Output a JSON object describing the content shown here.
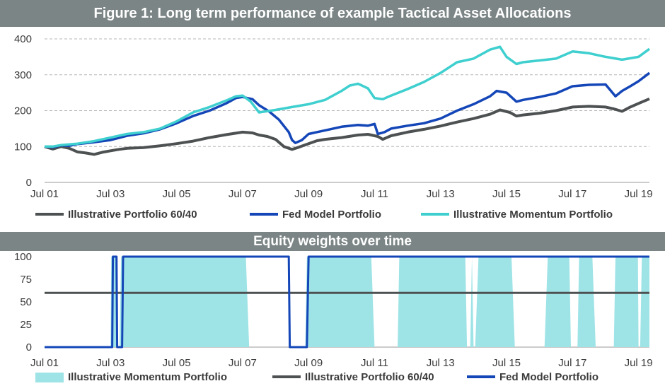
{
  "colors": {
    "banner": "#7c8586",
    "p6040": "#4d5152",
    "fed": "#1446b8",
    "momentum": "#3fcfcf",
    "momentum_fill": "#9ee3e6",
    "grid": "#b5b5b5",
    "text": "#3b3b3b"
  },
  "chart_data": [
    {
      "type": "line",
      "title": "Figure 1: Long term performance of example Tactical Asset Allocations",
      "x_tick_labels": [
        "Jul 01",
        "Jul 03",
        "Jul 05",
        "Jul 07",
        "Jul 09",
        "Jul 11",
        "Jul 13",
        "Jul 15",
        "Jul 17",
        "Jul 19"
      ],
      "x_ticks_year": [
        2001.5,
        2003.5,
        2005.5,
        2007.5,
        2009.5,
        2011.5,
        2013.5,
        2015.5,
        2017.5,
        2019.5
      ],
      "xlim": [
        2001.5,
        2019.83
      ],
      "ylim": [
        0,
        400
      ],
      "y_ticks": [
        0,
        100,
        200,
        300,
        400
      ],
      "grid": "horizontal dashed",
      "legend_position": "bottom",
      "series": [
        {
          "name": "Illustrative Portfolio 60/40",
          "color_key": "p6040",
          "x": [
            2001.5,
            2001.75,
            2002.0,
            2002.25,
            2002.5,
            2002.75,
            2003.0,
            2003.25,
            2003.5,
            2003.75,
            2004.0,
            2004.5,
            2005.0,
            2005.5,
            2006.0,
            2006.5,
            2007.0,
            2007.5,
            2007.8,
            2008.0,
            2008.25,
            2008.5,
            2008.75,
            2009.0,
            2009.2,
            2009.5,
            2009.75,
            2010.0,
            2010.5,
            2011.0,
            2011.3,
            2011.6,
            2011.75,
            2012.0,
            2012.5,
            2013.0,
            2013.5,
            2014.0,
            2014.5,
            2015.0,
            2015.3,
            2015.6,
            2015.8,
            2016.0,
            2016.5,
            2017.0,
            2017.5,
            2018.0,
            2018.5,
            2018.75,
            2019.0,
            2019.25,
            2019.5,
            2019.83
          ],
          "values": [
            100,
            93,
            100,
            95,
            85,
            82,
            78,
            84,
            88,
            92,
            95,
            97,
            102,
            108,
            115,
            125,
            133,
            140,
            138,
            132,
            128,
            120,
            100,
            92,
            98,
            108,
            116,
            120,
            125,
            132,
            134,
            128,
            120,
            130,
            140,
            148,
            157,
            168,
            178,
            190,
            202,
            195,
            185,
            188,
            193,
            200,
            210,
            212,
            210,
            205,
            198,
            210,
            220,
            233
          ]
        },
        {
          "name": "Fed Model Portfolio",
          "color_key": "fed",
          "x": [
            2001.5,
            2001.75,
            2002.0,
            2002.25,
            2002.5,
            2003.0,
            2003.5,
            2004.0,
            2004.5,
            2005.0,
            2005.5,
            2006.0,
            2006.5,
            2007.0,
            2007.3,
            2007.5,
            2007.8,
            2008.0,
            2008.3,
            2008.6,
            2008.9,
            2009.0,
            2009.1,
            2009.3,
            2009.5,
            2009.75,
            2010.0,
            2010.5,
            2011.0,
            2011.3,
            2011.5,
            2011.6,
            2011.8,
            2012.0,
            2012.5,
            2013.0,
            2013.5,
            2014.0,
            2014.5,
            2015.0,
            2015.2,
            2015.5,
            2015.8,
            2016.0,
            2016.5,
            2017.0,
            2017.5,
            2018.0,
            2018.5,
            2018.8,
            2019.0,
            2019.25,
            2019.5,
            2019.83
          ],
          "values": [
            100,
            98,
            103,
            102,
            107,
            112,
            118,
            130,
            137,
            148,
            165,
            185,
            200,
            220,
            235,
            238,
            232,
            215,
            198,
            175,
            140,
            118,
            110,
            118,
            135,
            140,
            145,
            155,
            160,
            158,
            163,
            135,
            140,
            150,
            158,
            165,
            178,
            200,
            218,
            240,
            255,
            250,
            225,
            230,
            238,
            248,
            268,
            272,
            273,
            240,
            255,
            268,
            282,
            305
          ]
        },
        {
          "name": "Illustrative Momentum Portfolio",
          "color_key": "momentum",
          "x": [
            2001.5,
            2001.75,
            2002.0,
            2002.5,
            2003.0,
            2003.5,
            2004.0,
            2004.5,
            2005.0,
            2005.5,
            2006.0,
            2006.5,
            2007.0,
            2007.3,
            2007.5,
            2007.75,
            2008.0,
            2008.5,
            2009.0,
            2009.5,
            2010.0,
            2010.5,
            2010.75,
            2011.0,
            2011.3,
            2011.5,
            2011.75,
            2012.0,
            2012.5,
            2013.0,
            2013.5,
            2014.0,
            2014.5,
            2015.0,
            2015.3,
            2015.5,
            2015.8,
            2016.0,
            2016.5,
            2017.0,
            2017.5,
            2018.0,
            2018.5,
            2019.0,
            2019.5,
            2019.83
          ],
          "values": [
            100,
            100,
            104,
            108,
            115,
            125,
            135,
            140,
            150,
            170,
            195,
            210,
            228,
            240,
            242,
            225,
            195,
            202,
            210,
            218,
            230,
            255,
            270,
            275,
            262,
            235,
            232,
            242,
            260,
            280,
            305,
            335,
            345,
            370,
            378,
            350,
            330,
            335,
            340,
            345,
            365,
            360,
            350,
            342,
            350,
            372
          ]
        }
      ]
    },
    {
      "type": "area",
      "title": "Equity weights over time",
      "x_tick_labels": [
        "Jul 01",
        "Jul 03",
        "Jul 05",
        "Jul 07",
        "Jul 09",
        "Jul 11",
        "Jul 13",
        "Jul 15",
        "Jul 17",
        "Jul 19"
      ],
      "x_ticks_year": [
        2001.5,
        2003.5,
        2005.5,
        2007.5,
        2009.5,
        2011.5,
        2013.5,
        2015.5,
        2017.5,
        2019.5
      ],
      "xlim": [
        2001.5,
        2019.83
      ],
      "ylim": [
        0,
        100
      ],
      "y_ticks": [
        0,
        25,
        50,
        75,
        100
      ],
      "grid": "none",
      "legend_position": "bottom",
      "series": [
        {
          "name": "Illustrative Momentum Portfolio",
          "color_key": "momentum_fill",
          "kind": "area",
          "x": [
            2001.5,
            2003.5,
            2003.52,
            2003.65,
            2003.7,
            2003.77,
            2003.82,
            2007.6,
            2007.7,
            2009.4,
            2009.45,
            2009.5,
            2011.4,
            2011.5,
            2012.2,
            2012.25,
            2014.25,
            2014.3,
            2014.4,
            2014.45,
            2014.5,
            2014.55,
            2014.65,
            2014.7,
            2015.65,
            2015.75,
            2016.65,
            2016.75,
            2017.4,
            2017.45,
            2017.65,
            2017.7,
            2018.1,
            2018.2,
            2018.75,
            2018.8,
            2019.48,
            2019.5,
            2019.55,
            2019.6,
            2019.83
          ],
          "values": [
            0,
            0,
            100,
            100,
            0,
            0,
            100,
            100,
            0,
            0,
            100,
            100,
            100,
            0,
            0,
            100,
            100,
            0,
            0,
            100,
            0,
            0,
            100,
            100,
            100,
            0,
            0,
            100,
            100,
            0,
            0,
            100,
            100,
            0,
            0,
            100,
            100,
            0,
            0,
            100,
            100
          ]
        },
        {
          "name": "Illustrative Portfolio 60/40",
          "color_key": "p6040",
          "kind": "line",
          "x": [
            2001.5,
            2019.83
          ],
          "values": [
            60,
            60
          ]
        },
        {
          "name": "Fed Model Portfolio",
          "color_key": "fed",
          "kind": "line",
          "x": [
            2001.5,
            2003.55,
            2003.57,
            2003.68,
            2003.7,
            2003.85,
            2003.88,
            2008.9,
            2008.93,
            2009.45,
            2009.5,
            2019.83
          ],
          "values": [
            0,
            0,
            100,
            100,
            0,
            0,
            100,
            100,
            0,
            0,
            100,
            100
          ]
        }
      ]
    }
  ]
}
